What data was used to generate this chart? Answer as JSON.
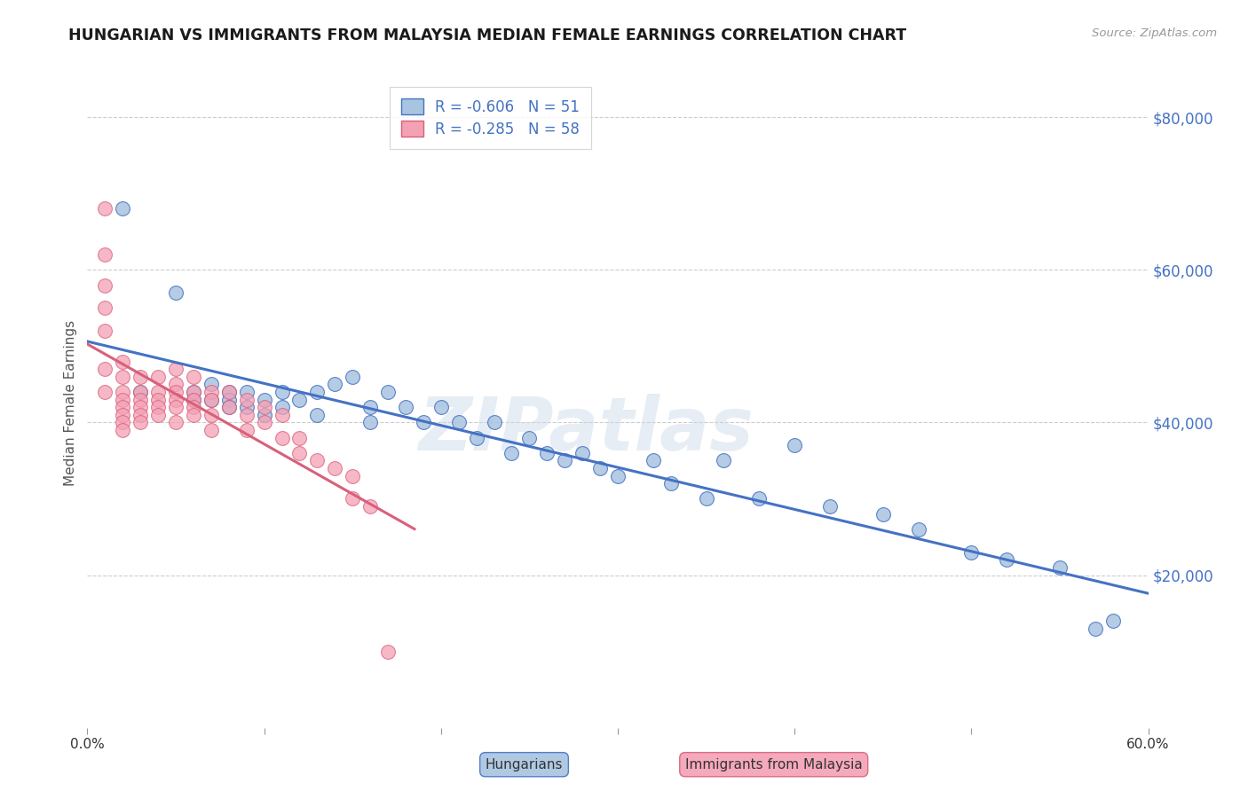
{
  "title": "HUNGARIAN VS IMMIGRANTS FROM MALAYSIA MEDIAN FEMALE EARNINGS CORRELATION CHART",
  "source": "Source: ZipAtlas.com",
  "ylabel": "Median Female Earnings",
  "yticks": [
    0,
    20000,
    40000,
    60000,
    80000
  ],
  "ytick_labels": [
    "",
    "$20,000",
    "$40,000",
    "$60,000",
    "$80,000"
  ],
  "xmin": 0.0,
  "xmax": 0.6,
  "ymin": 0,
  "ymax": 85000,
  "blue_color": "#a8c4e0",
  "pink_color": "#f4a0b5",
  "blue_line_color": "#4472c4",
  "pink_line_color": "#d9607a",
  "legend_blue_label": "R = -0.606   N = 51",
  "legend_pink_label": "R = -0.285   N = 58",
  "bottom_legend_blue": "Hungarians",
  "bottom_legend_pink": "Immigrants from Malaysia",
  "watermark": "ZIPatlas",
  "title_color": "#1a1a1a",
  "axis_label_color": "#555555",
  "right_tick_color": "#4472c4",
  "grid_color": "#cccccc",
  "blue_x": [
    0.02,
    0.03,
    0.05,
    0.06,
    0.06,
    0.07,
    0.07,
    0.08,
    0.08,
    0.08,
    0.09,
    0.09,
    0.1,
    0.1,
    0.11,
    0.11,
    0.12,
    0.13,
    0.13,
    0.14,
    0.15,
    0.16,
    0.16,
    0.17,
    0.18,
    0.19,
    0.2,
    0.21,
    0.22,
    0.23,
    0.24,
    0.25,
    0.26,
    0.27,
    0.28,
    0.29,
    0.3,
    0.32,
    0.33,
    0.35,
    0.36,
    0.38,
    0.4,
    0.42,
    0.45,
    0.47,
    0.5,
    0.52,
    0.55,
    0.57,
    0.58
  ],
  "blue_y": [
    68000,
    44000,
    57000,
    44000,
    43000,
    45000,
    43000,
    44000,
    43000,
    42000,
    44000,
    42000,
    43000,
    41000,
    44000,
    42000,
    43000,
    44000,
    41000,
    45000,
    46000,
    42000,
    40000,
    44000,
    42000,
    40000,
    42000,
    40000,
    38000,
    40000,
    36000,
    38000,
    36000,
    35000,
    36000,
    34000,
    33000,
    35000,
    32000,
    30000,
    35000,
    30000,
    37000,
    29000,
    28000,
    26000,
    23000,
    22000,
    21000,
    13000,
    14000
  ],
  "pink_x": [
    0.01,
    0.01,
    0.01,
    0.01,
    0.01,
    0.01,
    0.01,
    0.02,
    0.02,
    0.02,
    0.02,
    0.02,
    0.02,
    0.02,
    0.02,
    0.03,
    0.03,
    0.03,
    0.03,
    0.03,
    0.03,
    0.04,
    0.04,
    0.04,
    0.04,
    0.04,
    0.05,
    0.05,
    0.05,
    0.05,
    0.05,
    0.05,
    0.06,
    0.06,
    0.06,
    0.06,
    0.06,
    0.07,
    0.07,
    0.07,
    0.07,
    0.08,
    0.08,
    0.09,
    0.09,
    0.09,
    0.1,
    0.1,
    0.11,
    0.11,
    0.12,
    0.12,
    0.13,
    0.14,
    0.15,
    0.15,
    0.16,
    0.17
  ],
  "pink_y": [
    68000,
    62000,
    58000,
    55000,
    52000,
    47000,
    44000,
    48000,
    46000,
    44000,
    43000,
    42000,
    41000,
    40000,
    39000,
    46000,
    44000,
    43000,
    42000,
    41000,
    40000,
    46000,
    44000,
    43000,
    42000,
    41000,
    47000,
    45000,
    44000,
    43000,
    42000,
    40000,
    46000,
    44000,
    43000,
    42000,
    41000,
    44000,
    43000,
    41000,
    39000,
    44000,
    42000,
    43000,
    41000,
    39000,
    42000,
    40000,
    41000,
    38000,
    38000,
    36000,
    35000,
    34000,
    33000,
    30000,
    29000,
    10000
  ]
}
